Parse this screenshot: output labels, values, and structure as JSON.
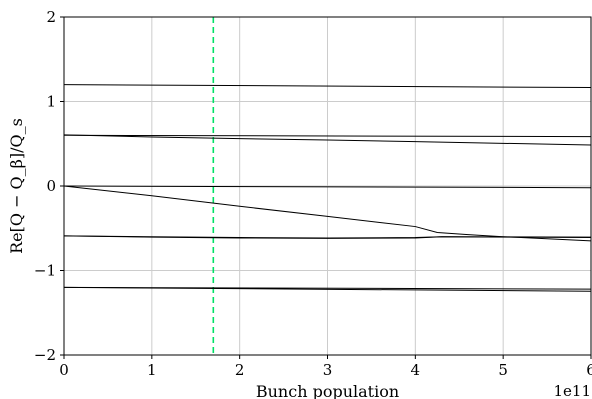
{
  "chart_data": {
    "type": "line",
    "title": "",
    "xlabel": "Bunch population",
    "ylabel": "Re[Q − Q_β]/Q_s",
    "x_multiplier_label": "1e11",
    "xlim": [
      0,
      6
    ],
    "ylim": [
      -2,
      2
    ],
    "xticks": [
      0,
      1,
      2,
      3,
      4,
      5,
      6
    ],
    "yticks": [
      -2,
      -1,
      0,
      1,
      2
    ],
    "ytick_labels": [
      "−2",
      "−1",
      "0",
      "1",
      "2"
    ],
    "grid": true,
    "line_color": "#000000",
    "reference_line": {
      "x": 1.7,
      "color": "#00e066",
      "style": "dashed"
    },
    "series": [
      {
        "x": [
          0,
          6
        ],
        "y": [
          1.2,
          1.165
        ]
      },
      {
        "x": [
          0,
          6
        ],
        "y": [
          0.6,
          0.585
        ]
      },
      {
        "x": [
          0,
          1,
          2,
          3,
          4,
          5,
          6
        ],
        "y": [
          0.605,
          0.58,
          0.56,
          0.545,
          0.525,
          0.505,
          0.485
        ]
      },
      {
        "x": [
          0,
          6
        ],
        "y": [
          0.0,
          -0.02
        ]
      },
      {
        "x": [
          0,
          1,
          2,
          3,
          4,
          4.25,
          4.6,
          5,
          5.5,
          6
        ],
        "y": [
          0.0,
          -0.115,
          -0.24,
          -0.36,
          -0.48,
          -0.55,
          -0.575,
          -0.6,
          -0.625,
          -0.65
        ]
      },
      {
        "x": [
          0,
          1,
          2,
          3,
          4,
          4.3,
          6
        ],
        "y": [
          -0.59,
          -0.605,
          -0.615,
          -0.62,
          -0.615,
          -0.6,
          -0.605
        ]
      },
      {
        "x": [
          0,
          1,
          2,
          3,
          4,
          4.3,
          6
        ],
        "y": [
          -0.59,
          -0.6,
          -0.61,
          -0.615,
          -0.61,
          -0.6,
          -0.61
        ]
      },
      {
        "x": [
          0,
          6
        ],
        "y": [
          -1.2,
          -1.22
        ]
      },
      {
        "x": [
          0,
          6
        ],
        "y": [
          -1.2,
          -1.245
        ]
      }
    ]
  }
}
